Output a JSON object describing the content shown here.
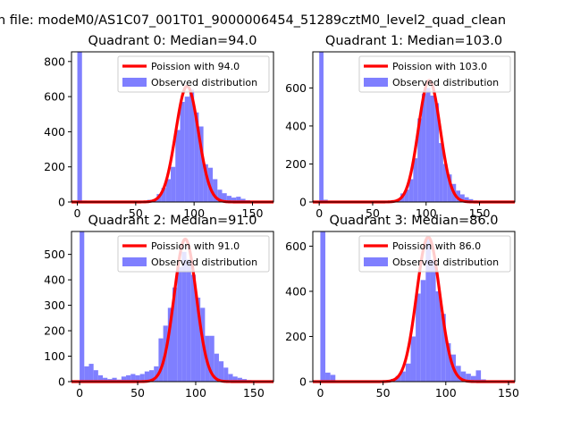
{
  "figure": {
    "suptitle": "n file: modeM0/AS1C07_001T01_9000006454_51289cztM0_level2_quad_clean"
  },
  "colors": {
    "poisson_line": "#ff0000",
    "observed_bars": "#7f7fff",
    "axis": "#000000"
  },
  "chart_data": [
    {
      "type": "bar",
      "title": "Quadrant 0: Median=94.0",
      "xlabel": "",
      "ylabel": "",
      "xlim": [
        -5,
        168
      ],
      "ylim": [
        0,
        855
      ],
      "xticks": [
        "0",
        "50",
        "100",
        "150"
      ],
      "yticks": [
        "0",
        "200",
        "400",
        "600",
        "800"
      ],
      "legend": {
        "position": "top-right",
        "entries": [
          "Poission with 94.0",
          "Observed distribution"
        ]
      },
      "poisson": {
        "lambda": 94.0,
        "peak": 660
      },
      "bins": [
        {
          "x0": 0,
          "x1": 4,
          "count": 855
        },
        {
          "x0": 4,
          "x1": 8,
          "count": 8
        },
        {
          "x0": 8,
          "x1": 12,
          "count": 3
        },
        {
          "x0": 12,
          "x1": 16,
          "count": 2
        },
        {
          "x0": 56,
          "x1": 60,
          "count": 5
        },
        {
          "x0": 60,
          "x1": 64,
          "count": 12
        },
        {
          "x0": 64,
          "x1": 68,
          "count": 15
        },
        {
          "x0": 68,
          "x1": 72,
          "count": 45
        },
        {
          "x0": 72,
          "x1": 76,
          "count": 80
        },
        {
          "x0": 76,
          "x1": 80,
          "count": 130
        },
        {
          "x0": 80,
          "x1": 84,
          "count": 200
        },
        {
          "x0": 84,
          "x1": 88,
          "count": 410
        },
        {
          "x0": 88,
          "x1": 92,
          "count": 570
        },
        {
          "x0": 92,
          "x1": 96,
          "count": 600
        },
        {
          "x0": 96,
          "x1": 100,
          "count": 640
        },
        {
          "x0": 100,
          "x1": 104,
          "count": 510
        },
        {
          "x0": 104,
          "x1": 108,
          "count": 430
        },
        {
          "x0": 108,
          "x1": 112,
          "count": 215
        },
        {
          "x0": 112,
          "x1": 116,
          "count": 195
        },
        {
          "x0": 116,
          "x1": 120,
          "count": 130
        },
        {
          "x0": 120,
          "x1": 124,
          "count": 70
        },
        {
          "x0": 124,
          "x1": 128,
          "count": 50
        },
        {
          "x0": 128,
          "x1": 132,
          "count": 35
        },
        {
          "x0": 132,
          "x1": 136,
          "count": 25
        },
        {
          "x0": 136,
          "x1": 140,
          "count": 30
        },
        {
          "x0": 140,
          "x1": 144,
          "count": 18
        },
        {
          "x0": 144,
          "x1": 148,
          "count": 10
        },
        {
          "x0": 148,
          "x1": 152,
          "count": 5
        }
      ]
    },
    {
      "type": "bar",
      "title": "Quadrant 1: Median=103.0",
      "xlabel": "",
      "ylabel": "",
      "xlim": [
        -6,
        183
      ],
      "ylim": [
        0,
        790
      ],
      "xticks": [
        "0",
        "50",
        "100",
        "150"
      ],
      "yticks": [
        "0",
        "200",
        "400",
        "600"
      ],
      "legend": {
        "position": "top-right",
        "entries": [
          "Poission with 103.0",
          "Observed distribution"
        ]
      },
      "poisson": {
        "lambda": 103.0,
        "peak": 640
      },
      "bins": [
        {
          "x0": 0,
          "x1": 4,
          "count": 790
        },
        {
          "x0": 4,
          "x1": 8,
          "count": 12
        },
        {
          "x0": 8,
          "x1": 12,
          "count": 4
        },
        {
          "x0": 64,
          "x1": 68,
          "count": 5
        },
        {
          "x0": 68,
          "x1": 72,
          "count": 10
        },
        {
          "x0": 72,
          "x1": 76,
          "count": 15
        },
        {
          "x0": 76,
          "x1": 80,
          "count": 45
        },
        {
          "x0": 80,
          "x1": 84,
          "count": 65
        },
        {
          "x0": 84,
          "x1": 88,
          "count": 120
        },
        {
          "x0": 88,
          "x1": 92,
          "count": 230
        },
        {
          "x0": 92,
          "x1": 96,
          "count": 440
        },
        {
          "x0": 96,
          "x1": 100,
          "count": 570
        },
        {
          "x0": 100,
          "x1": 104,
          "count": 600
        },
        {
          "x0": 104,
          "x1": 108,
          "count": 560
        },
        {
          "x0": 108,
          "x1": 112,
          "count": 520
        },
        {
          "x0": 112,
          "x1": 116,
          "count": 310
        },
        {
          "x0": 116,
          "x1": 120,
          "count": 200
        },
        {
          "x0": 120,
          "x1": 124,
          "count": 145
        },
        {
          "x0": 124,
          "x1": 128,
          "count": 95
        },
        {
          "x0": 128,
          "x1": 132,
          "count": 60
        },
        {
          "x0": 132,
          "x1": 136,
          "count": 40
        },
        {
          "x0": 136,
          "x1": 140,
          "count": 25
        },
        {
          "x0": 140,
          "x1": 144,
          "count": 15
        },
        {
          "x0": 144,
          "x1": 148,
          "count": 8
        }
      ]
    },
    {
      "type": "bar",
      "title": "Quadrant 2: Median=91.0",
      "xlabel": "",
      "ylabel": "",
      "xlim": [
        -7,
        167
      ],
      "ylim": [
        0,
        590
      ],
      "xticks": [
        "0",
        "50",
        "100",
        "150"
      ],
      "yticks": [
        "0",
        "100",
        "200",
        "300",
        "400",
        "500"
      ],
      "legend": {
        "position": "top-right",
        "entries": [
          "Poission with 91.0",
          "Observed distribution"
        ]
      },
      "poisson": {
        "lambda": 91.0,
        "peak": 560
      },
      "bins": [
        {
          "x0": 0,
          "x1": 4,
          "count": 590
        },
        {
          "x0": 4,
          "x1": 8,
          "count": 60
        },
        {
          "x0": 8,
          "x1": 12,
          "count": 70
        },
        {
          "x0": 12,
          "x1": 16,
          "count": 45
        },
        {
          "x0": 16,
          "x1": 20,
          "count": 25
        },
        {
          "x0": 20,
          "x1": 24,
          "count": 15
        },
        {
          "x0": 24,
          "x1": 28,
          "count": 10
        },
        {
          "x0": 28,
          "x1": 32,
          "count": 15
        },
        {
          "x0": 32,
          "x1": 36,
          "count": 8
        },
        {
          "x0": 36,
          "x1": 40,
          "count": 20
        },
        {
          "x0": 40,
          "x1": 44,
          "count": 25
        },
        {
          "x0": 44,
          "x1": 48,
          "count": 30
        },
        {
          "x0": 48,
          "x1": 52,
          "count": 25
        },
        {
          "x0": 52,
          "x1": 56,
          "count": 30
        },
        {
          "x0": 56,
          "x1": 60,
          "count": 40
        },
        {
          "x0": 60,
          "x1": 64,
          "count": 45
        },
        {
          "x0": 64,
          "x1": 68,
          "count": 60
        },
        {
          "x0": 68,
          "x1": 72,
          "count": 170
        },
        {
          "x0": 72,
          "x1": 76,
          "count": 220
        },
        {
          "x0": 76,
          "x1": 80,
          "count": 290
        },
        {
          "x0": 80,
          "x1": 84,
          "count": 370
        },
        {
          "x0": 84,
          "x1": 88,
          "count": 450
        },
        {
          "x0": 88,
          "x1": 92,
          "count": 510
        },
        {
          "x0": 92,
          "x1": 96,
          "count": 480
        },
        {
          "x0": 96,
          "x1": 100,
          "count": 420
        },
        {
          "x0": 100,
          "x1": 104,
          "count": 330
        },
        {
          "x0": 104,
          "x1": 108,
          "count": 290
        },
        {
          "x0": 108,
          "x1": 112,
          "count": 180
        },
        {
          "x0": 112,
          "x1": 116,
          "count": 180
        },
        {
          "x0": 116,
          "x1": 120,
          "count": 110
        },
        {
          "x0": 120,
          "x1": 124,
          "count": 80
        },
        {
          "x0": 124,
          "x1": 128,
          "count": 55
        },
        {
          "x0": 128,
          "x1": 132,
          "count": 30
        },
        {
          "x0": 132,
          "x1": 136,
          "count": 20
        },
        {
          "x0": 136,
          "x1": 140,
          "count": 15
        },
        {
          "x0": 140,
          "x1": 144,
          "count": 10
        },
        {
          "x0": 144,
          "x1": 148,
          "count": 6
        }
      ]
    },
    {
      "type": "bar",
      "title": "Quadrant 3: Median=86.0",
      "xlabel": "",
      "ylabel": "",
      "xlim": [
        -6,
        155
      ],
      "ylim": [
        0,
        665
      ],
      "xticks": [
        "0",
        "50",
        "100",
        "150"
      ],
      "yticks": [
        "0",
        "200",
        "400",
        "600"
      ],
      "legend": {
        "position": "top-right",
        "entries": [
          "Poission with 86.0",
          "Observed distribution"
        ]
      },
      "poisson": {
        "lambda": 86.0,
        "peak": 640
      },
      "bins": [
        {
          "x0": 0,
          "x1": 4,
          "count": 665
        },
        {
          "x0": 4,
          "x1": 8,
          "count": 40
        },
        {
          "x0": 8,
          "x1": 12,
          "count": 30
        },
        {
          "x0": 52,
          "x1": 56,
          "count": 5
        },
        {
          "x0": 56,
          "x1": 60,
          "count": 12
        },
        {
          "x0": 60,
          "x1": 64,
          "count": 25
        },
        {
          "x0": 64,
          "x1": 68,
          "count": 45
        },
        {
          "x0": 68,
          "x1": 72,
          "count": 80
        },
        {
          "x0": 72,
          "x1": 76,
          "count": 200
        },
        {
          "x0": 76,
          "x1": 80,
          "count": 390
        },
        {
          "x0": 80,
          "x1": 84,
          "count": 450
        },
        {
          "x0": 84,
          "x1": 88,
          "count": 640
        },
        {
          "x0": 88,
          "x1": 92,
          "count": 540
        },
        {
          "x0": 92,
          "x1": 96,
          "count": 400
        },
        {
          "x0": 96,
          "x1": 100,
          "count": 300
        },
        {
          "x0": 100,
          "x1": 104,
          "count": 170
        },
        {
          "x0": 104,
          "x1": 108,
          "count": 120
        },
        {
          "x0": 108,
          "x1": 112,
          "count": 70
        },
        {
          "x0": 112,
          "x1": 116,
          "count": 45
        },
        {
          "x0": 116,
          "x1": 120,
          "count": 35
        },
        {
          "x0": 120,
          "x1": 124,
          "count": 25
        },
        {
          "x0": 124,
          "x1": 128,
          "count": 50
        },
        {
          "x0": 128,
          "x1": 132,
          "count": 10
        },
        {
          "x0": 132,
          "x1": 136,
          "count": 5
        }
      ]
    }
  ]
}
